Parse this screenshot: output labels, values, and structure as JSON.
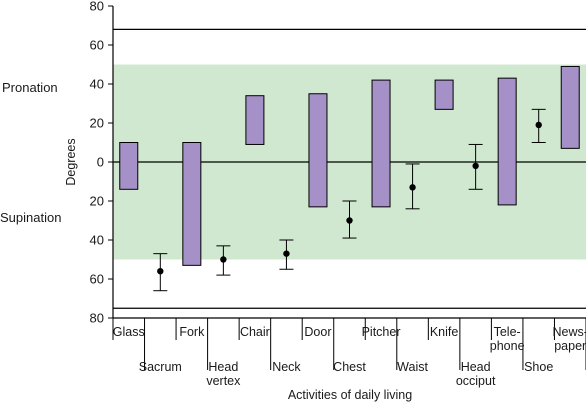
{
  "chart_data": {
    "type": "range",
    "xlabel": "Activities of daily living",
    "ylabel": "Degrees",
    "ylim": [
      -80,
      80
    ],
    "yticks": [
      80,
      60,
      40,
      20,
      0,
      20,
      40,
      60,
      80
    ],
    "side_labels": {
      "top": "Pronation",
      "bottom": "Supination"
    },
    "band": {
      "from": -50,
      "to": 50,
      "color": "#cfe8cf"
    },
    "reference_lines": [
      68,
      0,
      -75
    ],
    "bar_color": "#a591c7",
    "categories": [
      {
        "label": [
          "Glass"
        ],
        "kind": "bar",
        "low": -14,
        "high": 10
      },
      {
        "label": [
          "Sacrum"
        ],
        "kind": "point",
        "value": -56,
        "low": -66,
        "high": -47
      },
      {
        "label": [
          "Fork"
        ],
        "kind": "bar",
        "low": -53,
        "high": 10
      },
      {
        "label": [
          "Head",
          "vertex"
        ],
        "kind": "point",
        "value": -50,
        "low": -58,
        "high": -43
      },
      {
        "label": [
          "Chair"
        ],
        "kind": "bar",
        "low": 9,
        "high": 34
      },
      {
        "label": [
          "Neck"
        ],
        "kind": "point",
        "value": -47,
        "low": -55,
        "high": -40
      },
      {
        "label": [
          "Door"
        ],
        "kind": "bar",
        "low": -23,
        "high": 35
      },
      {
        "label": [
          "Chest"
        ],
        "kind": "point",
        "value": -30,
        "low": -39,
        "high": -20
      },
      {
        "label": [
          "Pitcher"
        ],
        "kind": "bar",
        "low": -23,
        "high": 42
      },
      {
        "label": [
          "Waist"
        ],
        "kind": "point",
        "value": -13,
        "low": -24,
        "high": -1
      },
      {
        "label": [
          "Knife"
        ],
        "kind": "bar",
        "low": 27,
        "high": 42
      },
      {
        "label": [
          "Head",
          "occiput"
        ],
        "kind": "point",
        "value": -2,
        "low": -14,
        "high": 9
      },
      {
        "label": [
          "Tele-",
          "phone"
        ],
        "kind": "bar",
        "low": -22,
        "high": 43
      },
      {
        "label": [
          "Shoe"
        ],
        "kind": "point",
        "value": 19,
        "low": 10,
        "high": 27
      },
      {
        "label": [
          "News-",
          "paper"
        ],
        "kind": "bar",
        "low": 7,
        "high": 49
      }
    ]
  }
}
